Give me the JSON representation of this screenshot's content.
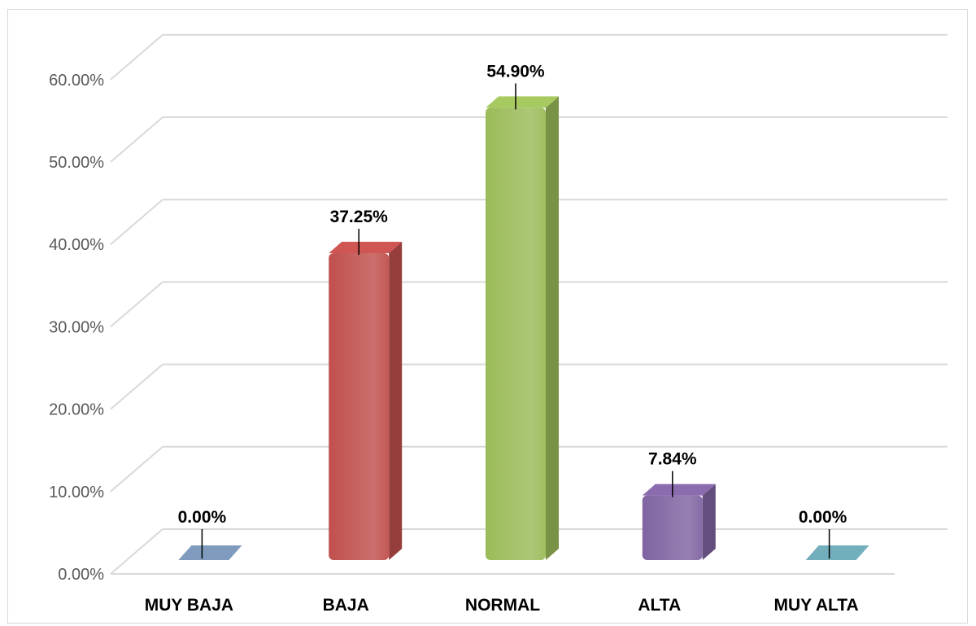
{
  "chart_data": {
    "type": "bar",
    "title": "",
    "xlabel": "",
    "ylabel": "",
    "categories": [
      "MUY BAJA",
      "BAJA",
      "NORMAL",
      "ALTA",
      "MUY ALTA"
    ],
    "values": [
      0.0,
      37.25,
      54.9,
      7.84,
      0.0
    ],
    "data_labels": [
      "0.00%",
      "37.25%",
      "54.90%",
      "7.84%",
      "0.00%"
    ],
    "yticks": [
      0,
      10,
      20,
      30,
      40,
      50,
      60
    ],
    "ytick_labels": [
      "0.00%",
      "10.00%",
      "20.00%",
      "30.00%",
      "40.00%",
      "50.00%",
      "60.00%"
    ],
    "ylim": [
      0,
      60
    ],
    "grid": true,
    "legend": "none",
    "style": "3d-column",
    "colors": [
      "#7f9bbd",
      "#c0504d",
      "#9bbb59",
      "#8064a2",
      "#72aebc"
    ]
  }
}
